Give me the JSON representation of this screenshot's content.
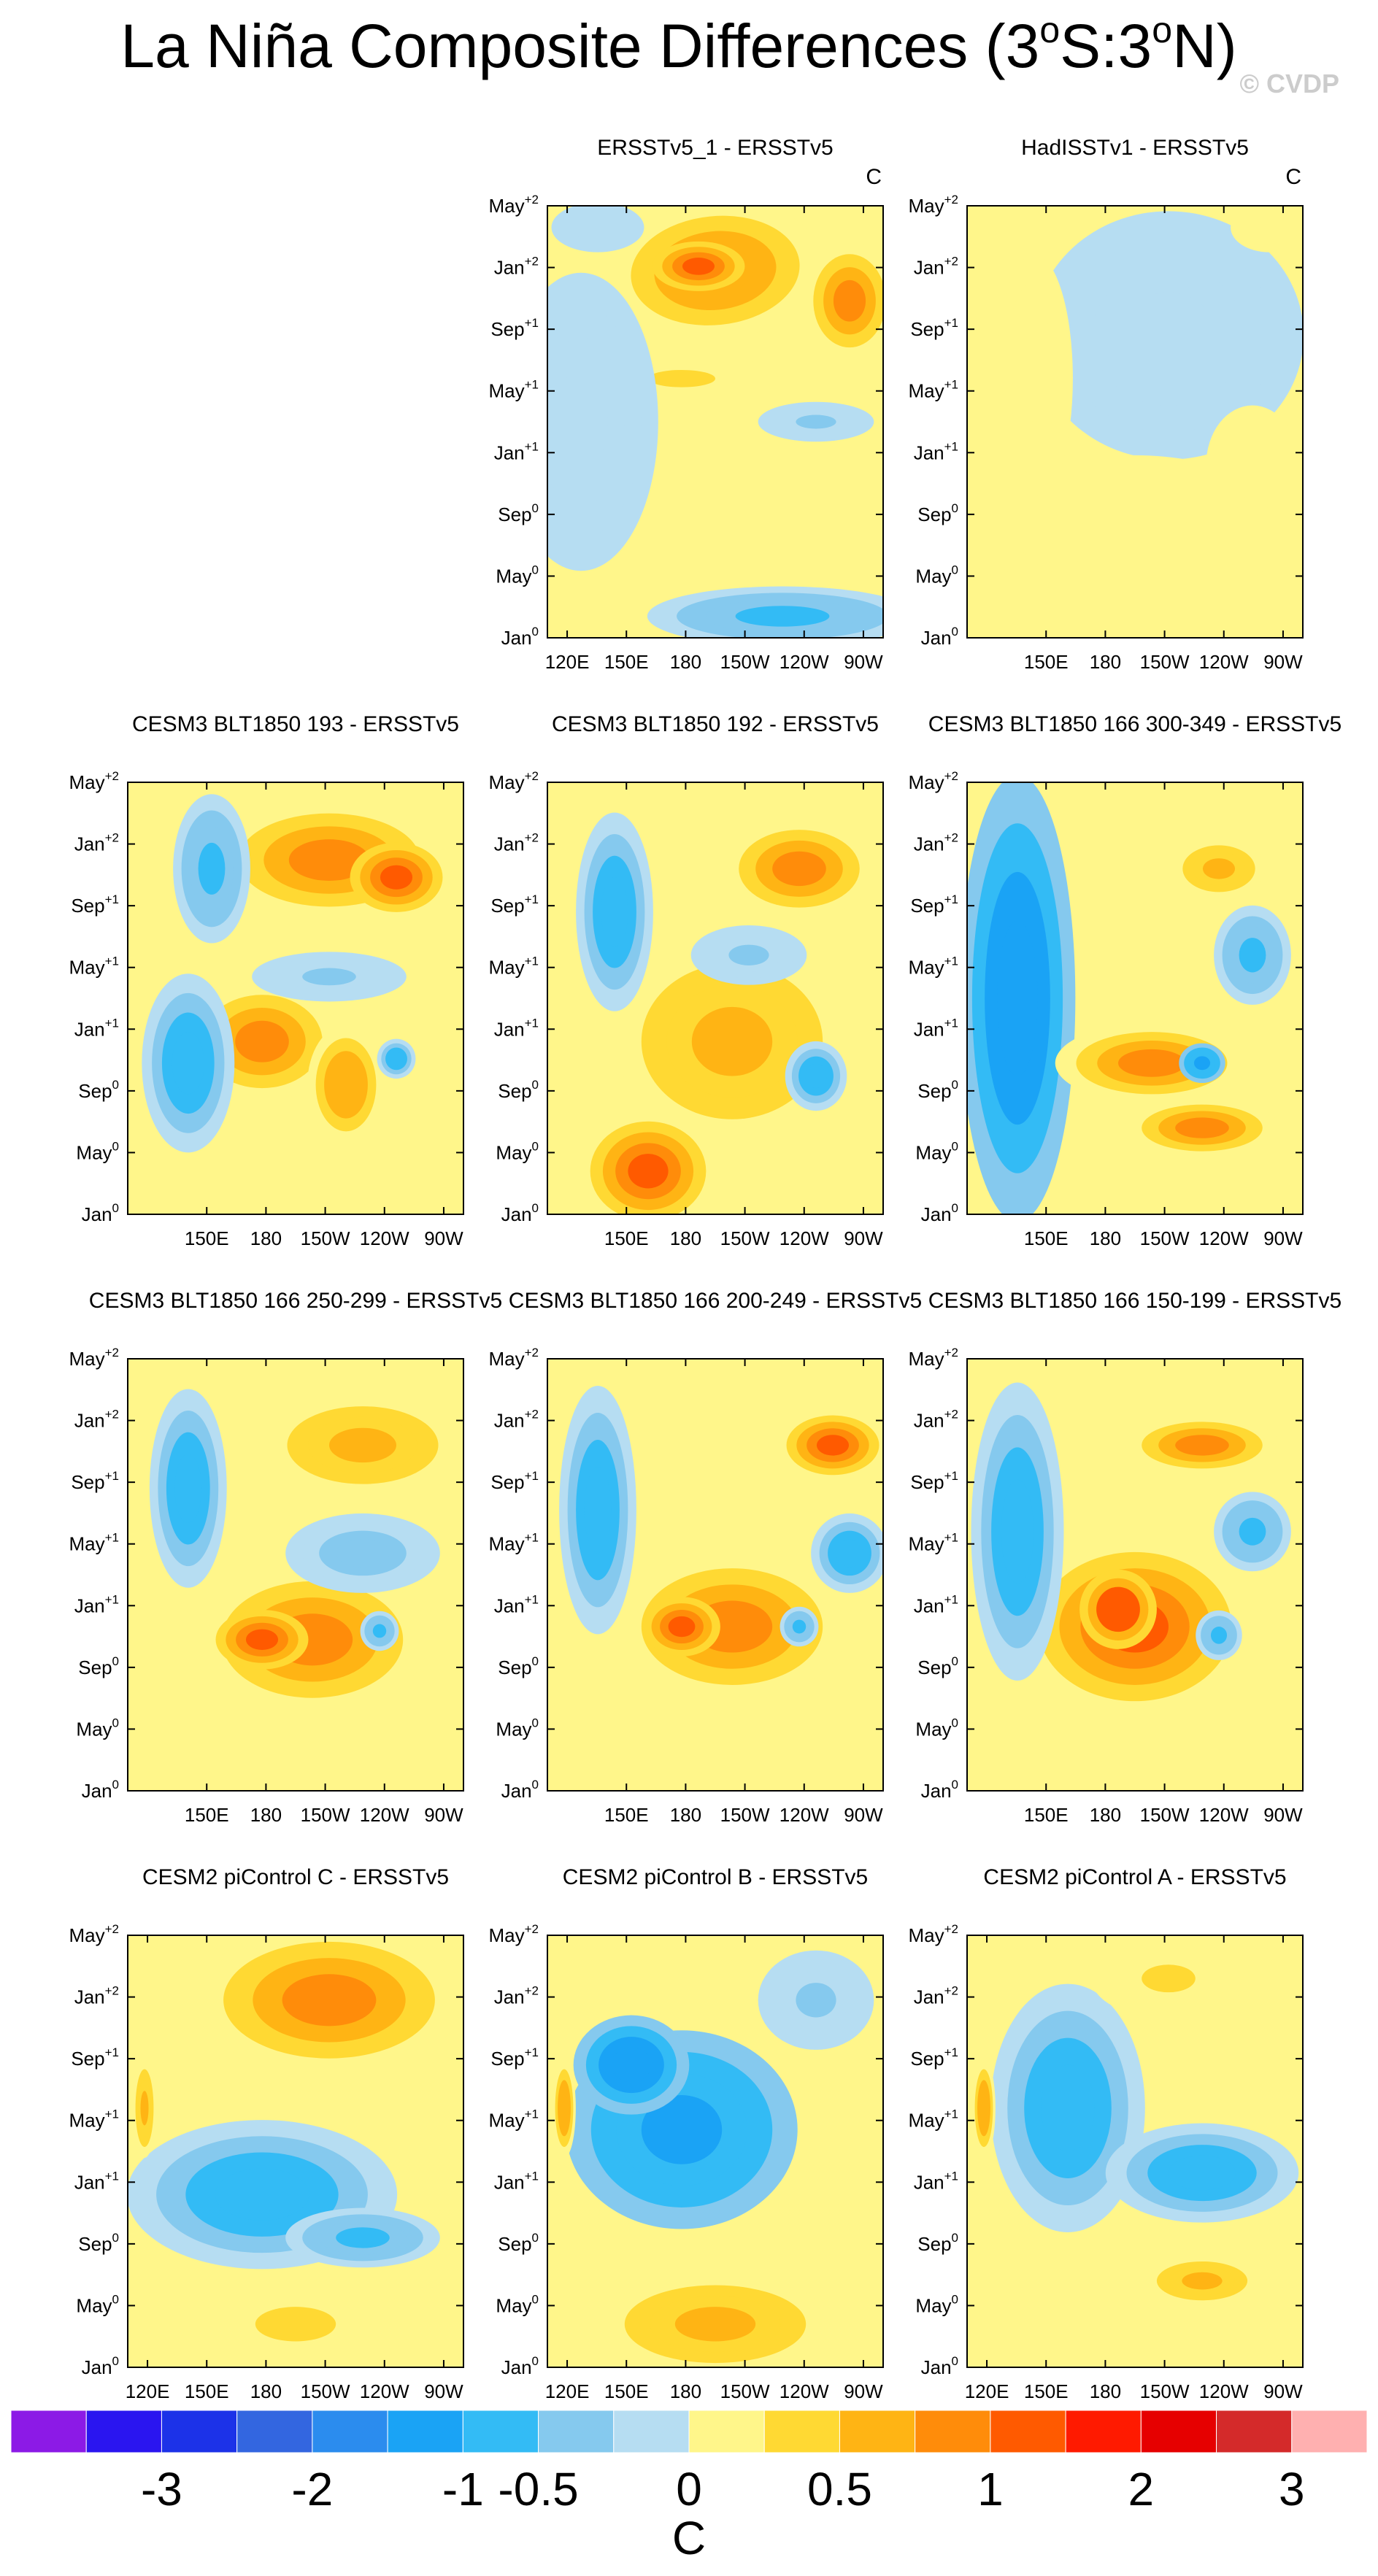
{
  "figure": {
    "title_main": "La Niña Composite Differences (3",
    "title_deg1": "o",
    "title_mid": "S:3",
    "title_deg2": "o",
    "title_end": "N)",
    "watermark": "© CVDP"
  },
  "colors": {
    "levels": [
      "#8C1AE6",
      "#2A15F0",
      "#1C32E8",
      "#3366E0",
      "#2B8CEE",
      "#1AA3F5",
      "#33BBF5",
      "#85C9EE",
      "#B6DDF2",
      "#FFF68A",
      "#FFD933",
      "#FFB414",
      "#FF8C0A",
      "#FF5A00",
      "#FF1A00",
      "#E60000",
      "#D42A2A",
      "#FFB0B0"
    ]
  },
  "colorbar": {
    "labels": [
      "-3",
      "-2",
      "-1",
      "-0.5",
      "0",
      "0.5",
      "1",
      "2",
      "3"
    ],
    "unit": "C"
  },
  "chart_data": {
    "type": "heatmap",
    "description_variable": "SST anomaly composite differences vs ERSSTv5, 3°S–3°N, lag by month (Jan0 to May+2) vs longitude",
    "levels": [
      -3.5,
      -3,
      -2.5,
      -2,
      -1.5,
      -1,
      -0.5,
      -0.25,
      0,
      0.25,
      0.5,
      0.75,
      1,
      1.5,
      2,
      2.5,
      3
    ],
    "colorbar_ticks": [
      -3,
      -2,
      -1,
      -0.5,
      0,
      0.5,
      1,
      2,
      3
    ],
    "x_range": [
      110,
      280
    ],
    "y_axis": [
      {
        "label": "Jan",
        "sup": "0"
      },
      {
        "label": "May",
        "sup": "0"
      },
      {
        "label": "Sep",
        "sup": "0"
      },
      {
        "label": "Jan",
        "sup": "+1"
      },
      {
        "label": "May",
        "sup": "+1"
      },
      {
        "label": "Sep",
        "sup": "+1"
      },
      {
        "label": "Jan",
        "sup": "+2"
      },
      {
        "label": "May",
        "sup": "+2"
      }
    ],
    "x_ticks_full": [
      {
        "label": "120E",
        "lon": 120
      },
      {
        "label": "150E",
        "lon": 150
      },
      {
        "label": "180",
        "lon": 180
      },
      {
        "label": "150W",
        "lon": 210
      },
      {
        "label": "120W",
        "lon": 240
      },
      {
        "label": "90W",
        "lon": 270
      }
    ],
    "panels": [
      {
        "title": "ERSSTv5_1 - ERSSTv5",
        "unit": "C",
        "show_120e": true,
        "blobs": [
          {
            "x": 0.5,
            "y": 0.85,
            "rx": 0.28,
            "ry": 0.14,
            "v": 0.7,
            "a": -0.1
          },
          {
            "x": 0.45,
            "y": 0.86,
            "rx": 0.12,
            "ry": 0.05,
            "v": 1.1
          },
          {
            "x": 0.9,
            "y": 0.78,
            "rx": 0.12,
            "ry": 0.12,
            "v": 0.8
          },
          {
            "x": 0.4,
            "y": 0.6,
            "rx": 0.25,
            "ry": 0.05,
            "v": 0.3
          },
          {
            "x": 0.8,
            "y": 0.5,
            "rx": 0.15,
            "ry": 0.04,
            "v": -0.3
          },
          {
            "x": 0.7,
            "y": 0.05,
            "rx": 0.35,
            "ry": 0.06,
            "v": -0.6
          },
          {
            "x": 0.1,
            "y": 0.5,
            "rx": 0.2,
            "ry": 0.3,
            "v": -0.15
          },
          {
            "x": 0.15,
            "y": 0.95,
            "rx": 0.12,
            "ry": 0.05,
            "v": -0.2
          }
        ]
      },
      {
        "title": "HadISSTv1 - ERSSTv5",
        "unit": "C",
        "show_120e": false,
        "blobs": [
          {
            "x": 0.6,
            "y": 0.7,
            "rx": 0.35,
            "ry": 0.25,
            "v": -0.2
          },
          {
            "x": 0.2,
            "y": 0.6,
            "rx": 0.1,
            "ry": 0.25,
            "v": 0.15
          },
          {
            "x": 0.5,
            "y": 0.25,
            "rx": 0.4,
            "ry": 0.15,
            "v": 0.15
          },
          {
            "x": 0.85,
            "y": 0.4,
            "rx": 0.12,
            "ry": 0.12,
            "v": 0.2
          },
          {
            "x": 0.9,
            "y": 0.95,
            "rx": 0.1,
            "ry": 0.05,
            "v": 0.2
          }
        ]
      },
      {
        "title": "CESM3 BLT1850 193 - ERSSTv5",
        "unit": "",
        "show_120e": false,
        "blobs": [
          {
            "x": 0.6,
            "y": 0.82,
            "rx": 0.3,
            "ry": 0.12,
            "v": 0.8
          },
          {
            "x": 0.8,
            "y": 0.78,
            "rx": 0.12,
            "ry": 0.07,
            "v": 1.3
          },
          {
            "x": 0.4,
            "y": 0.4,
            "rx": 0.2,
            "ry": 0.12,
            "v": 0.8
          },
          {
            "x": 0.65,
            "y": 0.3,
            "rx": 0.1,
            "ry": 0.12,
            "v": 0.7
          },
          {
            "x": 0.8,
            "y": 0.36,
            "rx": 0.05,
            "ry": 0.04,
            "v": -0.7
          },
          {
            "x": 0.18,
            "y": 0.35,
            "rx": 0.12,
            "ry": 0.18,
            "v": -0.7
          },
          {
            "x": 0.25,
            "y": 0.8,
            "rx": 0.1,
            "ry": 0.15,
            "v": -0.5
          },
          {
            "x": 0.6,
            "y": 0.55,
            "rx": 0.2,
            "ry": 0.05,
            "v": -0.3
          }
        ]
      },
      {
        "title": "CESM3 BLT1850 192 - ERSSTv5",
        "unit": "",
        "show_120e": false,
        "blobs": [
          {
            "x": 0.55,
            "y": 0.4,
            "rx": 0.3,
            "ry": 0.2,
            "v": 0.6
          },
          {
            "x": 0.3,
            "y": 0.1,
            "rx": 0.15,
            "ry": 0.1,
            "v": 1.0
          },
          {
            "x": 0.75,
            "y": 0.8,
            "rx": 0.2,
            "ry": 0.1,
            "v": 0.8
          },
          {
            "x": 0.8,
            "y": 0.32,
            "rx": 0.08,
            "ry": 0.07,
            "v": -0.8
          },
          {
            "x": 0.2,
            "y": 0.7,
            "rx": 0.1,
            "ry": 0.2,
            "v": -0.7
          },
          {
            "x": 0.6,
            "y": 0.6,
            "rx": 0.15,
            "ry": 0.06,
            "v": -0.3
          }
        ]
      },
      {
        "title": "CESM3 BLT1850 166 300-349 - ERSSTv5",
        "unit": "",
        "show_120e": false,
        "blobs": [
          {
            "x": 0.15,
            "y": 0.5,
            "rx": 0.15,
            "ry": 0.45,
            "v": -1.4
          },
          {
            "x": 0.55,
            "y": 0.35,
            "rx": 0.25,
            "ry": 0.08,
            "v": 0.8
          },
          {
            "x": 0.7,
            "y": 0.2,
            "rx": 0.2,
            "ry": 0.06,
            "v": 0.9
          },
          {
            "x": 0.7,
            "y": 0.35,
            "rx": 0.06,
            "ry": 0.04,
            "v": -1.2
          },
          {
            "x": 0.75,
            "y": 0.8,
            "rx": 0.12,
            "ry": 0.06,
            "v": 0.5
          },
          {
            "x": 0.85,
            "y": 0.6,
            "rx": 0.1,
            "ry": 0.1,
            "v": -0.6
          }
        ]
      },
      {
        "title": "CESM3 BLT1850 166 250-299 - ERSSTv5",
        "unit": "",
        "show_120e": false,
        "blobs": [
          {
            "x": 0.55,
            "y": 0.35,
            "rx": 0.3,
            "ry": 0.15,
            "v": 0.9
          },
          {
            "x": 0.4,
            "y": 0.35,
            "rx": 0.12,
            "ry": 0.06,
            "v": 1.3
          },
          {
            "x": 0.7,
            "y": 0.8,
            "rx": 0.25,
            "ry": 0.1,
            "v": 0.6
          },
          {
            "x": 0.18,
            "y": 0.7,
            "rx": 0.1,
            "ry": 0.2,
            "v": -0.8
          },
          {
            "x": 0.75,
            "y": 0.37,
            "rx": 0.05,
            "ry": 0.04,
            "v": -0.6
          },
          {
            "x": 0.7,
            "y": 0.55,
            "rx": 0.2,
            "ry": 0.08,
            "v": -0.4
          }
        ]
      },
      {
        "title": "CESM3 BLT1850 166 200-249 - ERSSTv5",
        "unit": "",
        "show_120e": false,
        "blobs": [
          {
            "x": 0.55,
            "y": 0.38,
            "rx": 0.3,
            "ry": 0.15,
            "v": 0.9
          },
          {
            "x": 0.4,
            "y": 0.38,
            "rx": 0.1,
            "ry": 0.06,
            "v": 1.2
          },
          {
            "x": 0.85,
            "y": 0.8,
            "rx": 0.12,
            "ry": 0.06,
            "v": 1.2
          },
          {
            "x": 0.15,
            "y": 0.65,
            "rx": 0.1,
            "ry": 0.25,
            "v": -0.9
          },
          {
            "x": 0.75,
            "y": 0.38,
            "rx": 0.05,
            "ry": 0.04,
            "v": -0.6
          },
          {
            "x": 0.9,
            "y": 0.55,
            "rx": 0.1,
            "ry": 0.08,
            "v": -0.7
          }
        ]
      },
      {
        "title": "CESM3 BLT1850 166 150-199 - ERSSTv5",
        "unit": "",
        "show_120e": false,
        "blobs": [
          {
            "x": 0.5,
            "y": 0.38,
            "rx": 0.25,
            "ry": 0.15,
            "v": 1.0
          },
          {
            "x": 0.45,
            "y": 0.42,
            "rx": 0.1,
            "ry": 0.08,
            "v": 1.4
          },
          {
            "x": 0.7,
            "y": 0.8,
            "rx": 0.2,
            "ry": 0.06,
            "v": 0.8
          },
          {
            "x": 0.15,
            "y": 0.6,
            "rx": 0.12,
            "ry": 0.3,
            "v": -0.9
          },
          {
            "x": 0.75,
            "y": 0.36,
            "rx": 0.06,
            "ry": 0.05,
            "v": -0.6
          },
          {
            "x": 0.85,
            "y": 0.6,
            "rx": 0.1,
            "ry": 0.08,
            "v": -0.5
          }
        ]
      },
      {
        "title": "CESM2 piControl C - ERSSTv5",
        "unit": "",
        "show_120e": true,
        "blobs": [
          {
            "x": 0.6,
            "y": 0.85,
            "rx": 0.35,
            "ry": 0.15,
            "v": 0.8
          },
          {
            "x": 0.4,
            "y": 0.4,
            "rx": 0.35,
            "ry": 0.15,
            "v": -0.8
          },
          {
            "x": 0.7,
            "y": 0.3,
            "rx": 0.2,
            "ry": 0.06,
            "v": -0.6
          },
          {
            "x": 0.05,
            "y": 0.6,
            "rx": 0.03,
            "ry": 0.1,
            "v": 0.6
          },
          {
            "x": 0.5,
            "y": 0.1,
            "rx": 0.3,
            "ry": 0.1,
            "v": 0.3
          }
        ]
      },
      {
        "title": "CESM2 piControl B - ERSSTv5",
        "unit": "",
        "show_120e": true,
        "blobs": [
          {
            "x": 0.4,
            "y": 0.55,
            "rx": 0.3,
            "ry": 0.2,
            "v": -1.1
          },
          {
            "x": 0.25,
            "y": 0.7,
            "rx": 0.15,
            "ry": 0.1,
            "v": -1.4
          },
          {
            "x": 0.5,
            "y": 0.1,
            "rx": 0.3,
            "ry": 0.1,
            "v": 0.6
          },
          {
            "x": 0.05,
            "y": 0.6,
            "rx": 0.03,
            "ry": 0.1,
            "v": 0.7
          },
          {
            "x": 0.8,
            "y": 0.85,
            "rx": 0.15,
            "ry": 0.1,
            "v": -0.3
          }
        ]
      },
      {
        "title": "CESM2 piControl A - ERSSTv5",
        "unit": "",
        "show_120e": true,
        "blobs": [
          {
            "x": 0.3,
            "y": 0.6,
            "rx": 0.2,
            "ry": 0.25,
            "v": -0.9
          },
          {
            "x": 0.7,
            "y": 0.45,
            "rx": 0.25,
            "ry": 0.1,
            "v": -0.7
          },
          {
            "x": 0.05,
            "y": 0.6,
            "rx": 0.03,
            "ry": 0.1,
            "v": 0.7
          },
          {
            "x": 0.7,
            "y": 0.2,
            "rx": 0.15,
            "ry": 0.05,
            "v": 0.5
          },
          {
            "x": 0.6,
            "y": 0.9,
            "rx": 0.2,
            "ry": 0.08,
            "v": 0.3
          }
        ]
      }
    ]
  }
}
